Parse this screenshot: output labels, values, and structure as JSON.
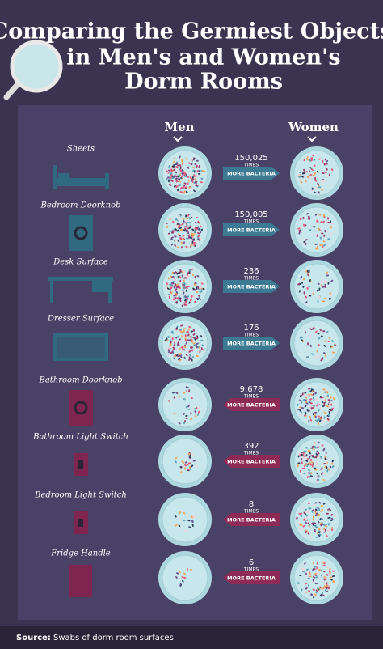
{
  "header": {
    "title_lines": [
      "Comparing the Germiest Objects",
      "in Men's and Women's",
      "Dorm Rooms"
    ]
  },
  "columns": [
    "Men",
    "Women"
  ],
  "rows": [
    {
      "object": "Sheets",
      "multiplier": "150,025",
      "unit": "TIMES",
      "label": "MORE BACTERIA",
      "arrow": "right"
    },
    {
      "object": "Bedroom Doorknob",
      "multiplier": "150,005",
      "unit": "TIMES",
      "label": "MORE BACTERIA",
      "arrow": "right"
    },
    {
      "object": "Desk Surface",
      "multiplier": "236",
      "unit": "TIMES",
      "label": "MORE BACTERIA",
      "arrow": "right"
    },
    {
      "object": "Dresser Surface",
      "multiplier": "176",
      "unit": "TIMES",
      "label": "MORE BACTERIA",
      "arrow": "right"
    },
    {
      "object": "Bathroom Doorknob",
      "multiplier": "9,678",
      "unit": "TIMES",
      "label": "MORE BACTERIA",
      "arrow": "left"
    },
    {
      "object": "Bathroom Light Switch",
      "multiplier": "392",
      "unit": "TIMES",
      "label": "MORE BACTERIA",
      "arrow": "left"
    },
    {
      "object": "Bedroom Light Switch",
      "multiplier": "8",
      "unit": "TIMES",
      "label": "MORE BACTERIA",
      "arrow": "left"
    },
    {
      "object": "Fridge Handle",
      "multiplier": "6",
      "unit": "TIMES",
      "label": "MORE BACTERIA",
      "arrow": "left"
    }
  ],
  "footer": {
    "source_label": "Source:",
    "source_text": "Swabs of dorm room surfaces"
  }
}
